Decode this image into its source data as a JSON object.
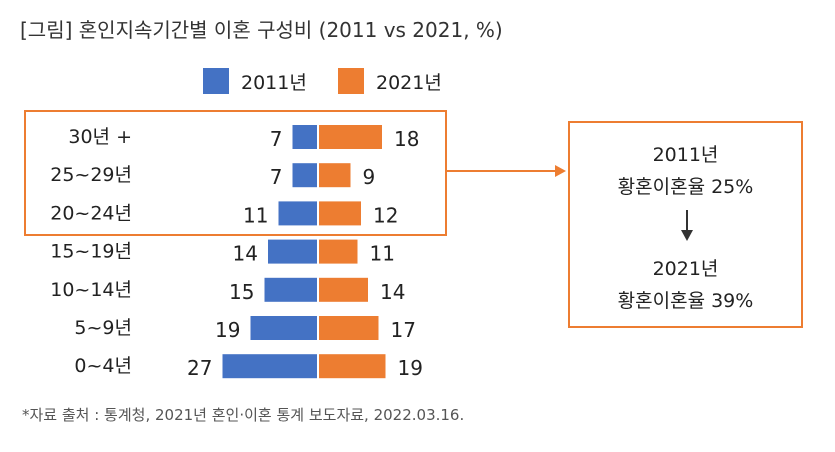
{
  "title": "[그림] 혼인지속기간별 이혼 구성비 (2011 vs 2021, %)",
  "legend": [
    {
      "label": "2011년",
      "color": "#4472C4"
    },
    {
      "label": "2021년",
      "color": "#ED7D31"
    }
  ],
  "chart_data": {
    "type": "bar",
    "orientation": "horizontal-butterfly",
    "title": "[그림] 혼인지속기간별 이혼 구성비 (2011 vs 2021, %)",
    "categories": [
      "30년 +",
      "25~29년",
      "20~24년",
      "15~19년",
      "10~14년",
      "5~9년",
      "0~4년"
    ],
    "series": [
      {
        "name": "2011년",
        "color": "#4472C4",
        "values": [
          7,
          7,
          11,
          14,
          15,
          19,
          27
        ]
      },
      {
        "name": "2021년",
        "color": "#ED7D31",
        "values": [
          18,
          9,
          12,
          11,
          14,
          17,
          19
        ]
      }
    ],
    "xlabel": "",
    "ylabel": "",
    "highlight_categories": [
      "30년 +",
      "25~29년",
      "20~24년"
    ]
  },
  "callout": {
    "line1": "2011년",
    "line2": "황혼이혼율 25%",
    "line3": "2021년",
    "line4": "황혼이혼율 39%",
    "arrow_icon": "down-arrow-icon"
  },
  "source": "*자료 출처 : 통계청, 2021년 혼인·이혼 통계 보도자료, 2022.03.16.",
  "colors": {
    "accent": "#ED7D31",
    "series2011": "#4472C4",
    "series2021": "#ED7D31"
  }
}
